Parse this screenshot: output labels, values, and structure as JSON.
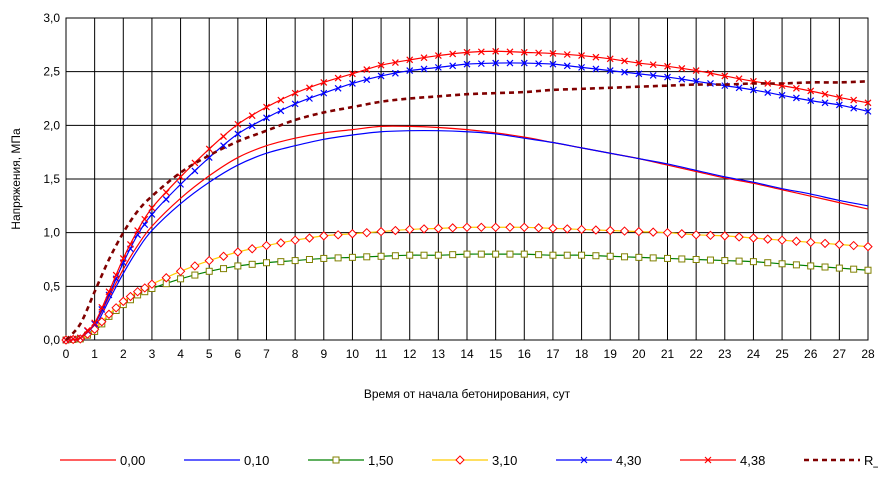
{
  "chart_data": {
    "type": "line",
    "xlabel": "Время от начала бетонирования, сут",
    "ylabel": "Напряжения, МПа",
    "xlim": [
      0,
      28
    ],
    "ylim": [
      0,
      3.0
    ],
    "x_ticks": [
      "0",
      "1",
      "2",
      "3",
      "4",
      "5",
      "6",
      "7",
      "8",
      "9",
      "10",
      "11",
      "12",
      "13",
      "14",
      "15",
      "16",
      "17",
      "18",
      "19",
      "20",
      "21",
      "22",
      "23",
      "24",
      "25",
      "26",
      "27",
      "28"
    ],
    "y_ticks": [
      "0,0",
      "0,5",
      "1,0",
      "1,5",
      "2,0",
      "2,5",
      "3,0"
    ],
    "grid": true,
    "legend_position": "bottom",
    "series": [
      {
        "name": "0,00",
        "color": "#ff0000",
        "marker": "none",
        "dash": false,
        "points": [
          [
            0,
            0
          ],
          [
            0.5,
            0.02
          ],
          [
            1,
            0.15
          ],
          [
            1.5,
            0.4
          ],
          [
            2,
            0.66
          ],
          [
            2.5,
            0.88
          ],
          [
            3,
            1.06
          ],
          [
            4,
            1.32
          ],
          [
            5,
            1.53
          ],
          [
            6,
            1.7
          ],
          [
            7,
            1.81
          ],
          [
            8,
            1.88
          ],
          [
            9,
            1.93
          ],
          [
            10,
            1.96
          ],
          [
            11,
            1.99
          ],
          [
            12,
            1.99
          ],
          [
            13,
            1.98
          ],
          [
            14,
            1.96
          ],
          [
            15,
            1.93
          ],
          [
            16,
            1.89
          ],
          [
            17,
            1.84
          ],
          [
            18,
            1.79
          ],
          [
            19,
            1.74
          ],
          [
            20,
            1.69
          ],
          [
            21,
            1.63
          ],
          [
            22,
            1.57
          ],
          [
            23,
            1.51
          ],
          [
            24,
            1.46
          ],
          [
            25,
            1.4
          ],
          [
            26,
            1.34
          ],
          [
            27,
            1.28
          ],
          [
            28,
            1.22
          ]
        ]
      },
      {
        "name": "0,10",
        "color": "#0000ff",
        "marker": "none",
        "dash": false,
        "points": [
          [
            0,
            0
          ],
          [
            0.5,
            0.01
          ],
          [
            1,
            0.12
          ],
          [
            1.5,
            0.37
          ],
          [
            2,
            0.62
          ],
          [
            2.5,
            0.84
          ],
          [
            3,
            1.02
          ],
          [
            4,
            1.27
          ],
          [
            5,
            1.47
          ],
          [
            6,
            1.63
          ],
          [
            7,
            1.74
          ],
          [
            8,
            1.81
          ],
          [
            9,
            1.87
          ],
          [
            10,
            1.91
          ],
          [
            11,
            1.94
          ],
          [
            12,
            1.95
          ],
          [
            13,
            1.95
          ],
          [
            14,
            1.94
          ],
          [
            15,
            1.92
          ],
          [
            16,
            1.88
          ],
          [
            17,
            1.84
          ],
          [
            18,
            1.79
          ],
          [
            19,
            1.74
          ],
          [
            20,
            1.69
          ],
          [
            21,
            1.64
          ],
          [
            22,
            1.58
          ],
          [
            23,
            1.52
          ],
          [
            24,
            1.47
          ],
          [
            25,
            1.41
          ],
          [
            26,
            1.36
          ],
          [
            27,
            1.3
          ],
          [
            28,
            1.25
          ]
        ]
      },
      {
        "name": "1,50",
        "color": "#008000",
        "marker": "square",
        "marker_color": "#808000",
        "dash": false,
        "points": [
          [
            0,
            0
          ],
          [
            0.5,
            0.01
          ],
          [
            1,
            0.08
          ],
          [
            1.5,
            0.22
          ],
          [
            2,
            0.33
          ],
          [
            2.5,
            0.42
          ],
          [
            3,
            0.48
          ],
          [
            4,
            0.57
          ],
          [
            5,
            0.64
          ],
          [
            6,
            0.69
          ],
          [
            7,
            0.72
          ],
          [
            8,
            0.74
          ],
          [
            9,
            0.76
          ],
          [
            10,
            0.77
          ],
          [
            11,
            0.78
          ],
          [
            12,
            0.79
          ],
          [
            13,
            0.79
          ],
          [
            14,
            0.8
          ],
          [
            15,
            0.8
          ],
          [
            16,
            0.8
          ],
          [
            17,
            0.79
          ],
          [
            18,
            0.79
          ],
          [
            19,
            0.78
          ],
          [
            20,
            0.77
          ],
          [
            21,
            0.76
          ],
          [
            22,
            0.75
          ],
          [
            23,
            0.74
          ],
          [
            24,
            0.73
          ],
          [
            25,
            0.71
          ],
          [
            26,
            0.69
          ],
          [
            27,
            0.67
          ],
          [
            28,
            0.65
          ]
        ]
      },
      {
        "name": "3,10",
        "color": "#ffcc00",
        "marker": "diamond",
        "marker_color": "#ff0000",
        "dash": false,
        "points": [
          [
            0,
            0
          ],
          [
            0.5,
            0.01
          ],
          [
            1,
            0.1
          ],
          [
            1.5,
            0.24
          ],
          [
            2,
            0.36
          ],
          [
            2.5,
            0.45
          ],
          [
            3,
            0.52
          ],
          [
            4,
            0.64
          ],
          [
            5,
            0.74
          ],
          [
            6,
            0.82
          ],
          [
            7,
            0.88
          ],
          [
            8,
            0.93
          ],
          [
            9,
            0.97
          ],
          [
            10,
            0.99
          ],
          [
            11,
            1.01
          ],
          [
            12,
            1.03
          ],
          [
            13,
            1.04
          ],
          [
            14,
            1.05
          ],
          [
            15,
            1.05
          ],
          [
            16,
            1.05
          ],
          [
            17,
            1.04
          ],
          [
            18,
            1.03
          ],
          [
            19,
            1.02
          ],
          [
            20,
            1.01
          ],
          [
            21,
            1.0
          ],
          [
            22,
            0.98
          ],
          [
            23,
            0.97
          ],
          [
            24,
            0.95
          ],
          [
            25,
            0.93
          ],
          [
            26,
            0.91
          ],
          [
            27,
            0.89
          ],
          [
            28,
            0.87
          ]
        ]
      },
      {
        "name": "4,30",
        "color": "#0000ff",
        "marker": "cross",
        "marker_color": "#0000ff",
        "dash": false,
        "points": [
          [
            0,
            0
          ],
          [
            0.5,
            0.02
          ],
          [
            1,
            0.15
          ],
          [
            1.5,
            0.42
          ],
          [
            2,
            0.72
          ],
          [
            2.5,
            0.98
          ],
          [
            3,
            1.17
          ],
          [
            4,
            1.45
          ],
          [
            5,
            1.7
          ],
          [
            6,
            1.92
          ],
          [
            7,
            2.07
          ],
          [
            8,
            2.2
          ],
          [
            9,
            2.3
          ],
          [
            10,
            2.39
          ],
          [
            11,
            2.46
          ],
          [
            12,
            2.51
          ],
          [
            13,
            2.54
          ],
          [
            14,
            2.57
          ],
          [
            15,
            2.58
          ],
          [
            16,
            2.58
          ],
          [
            17,
            2.57
          ],
          [
            18,
            2.54
          ],
          [
            19,
            2.51
          ],
          [
            20,
            2.48
          ],
          [
            21,
            2.45
          ],
          [
            22,
            2.41
          ],
          [
            23,
            2.37
          ],
          [
            24,
            2.33
          ],
          [
            25,
            2.28
          ],
          [
            26,
            2.23
          ],
          [
            27,
            2.19
          ],
          [
            28,
            2.13
          ]
        ]
      },
      {
        "name": "4,38",
        "color": "#ff0000",
        "marker": "cross",
        "marker_color": "#ff0000",
        "dash": false,
        "points": [
          [
            0,
            0
          ],
          [
            0.5,
            0.02
          ],
          [
            1,
            0.16
          ],
          [
            1.5,
            0.45
          ],
          [
            2,
            0.76
          ],
          [
            2.5,
            1.02
          ],
          [
            3,
            1.23
          ],
          [
            4,
            1.52
          ],
          [
            5,
            1.78
          ],
          [
            6,
            2.01
          ],
          [
            7,
            2.17
          ],
          [
            8,
            2.3
          ],
          [
            9,
            2.4
          ],
          [
            10,
            2.48
          ],
          [
            11,
            2.56
          ],
          [
            12,
            2.61
          ],
          [
            13,
            2.65
          ],
          [
            14,
            2.68
          ],
          [
            15,
            2.69
          ],
          [
            16,
            2.68
          ],
          [
            17,
            2.67
          ],
          [
            18,
            2.65
          ],
          [
            19,
            2.62
          ],
          [
            20,
            2.58
          ],
          [
            21,
            2.55
          ],
          [
            22,
            2.51
          ],
          [
            23,
            2.46
          ],
          [
            24,
            2.41
          ],
          [
            25,
            2.37
          ],
          [
            26,
            2.32
          ],
          [
            27,
            2.26
          ],
          [
            28,
            2.21
          ]
        ]
      },
      {
        "name": "R_bt,ser",
        "color": "#800000",
        "marker": "none",
        "dash": true,
        "points": [
          [
            0,
            0
          ],
          [
            0.5,
            0.15
          ],
          [
            1,
            0.45
          ],
          [
            1.5,
            0.75
          ],
          [
            2,
            1.0
          ],
          [
            2.5,
            1.2
          ],
          [
            3,
            1.34
          ],
          [
            4,
            1.56
          ],
          [
            5,
            1.72
          ],
          [
            6,
            1.85
          ],
          [
            7,
            1.95
          ],
          [
            8,
            2.05
          ],
          [
            9,
            2.12
          ],
          [
            10,
            2.17
          ],
          [
            11,
            2.22
          ],
          [
            12,
            2.25
          ],
          [
            13,
            2.27
          ],
          [
            14,
            2.29
          ],
          [
            15,
            2.3
          ],
          [
            16,
            2.31
          ],
          [
            17,
            2.33
          ],
          [
            18,
            2.34
          ],
          [
            19,
            2.35
          ],
          [
            20,
            2.36
          ],
          [
            21,
            2.37
          ],
          [
            22,
            2.38
          ],
          [
            23,
            2.38
          ],
          [
            24,
            2.39
          ],
          [
            25,
            2.39
          ],
          [
            26,
            2.4
          ],
          [
            27,
            2.4
          ],
          [
            28,
            2.41
          ]
        ]
      }
    ]
  }
}
